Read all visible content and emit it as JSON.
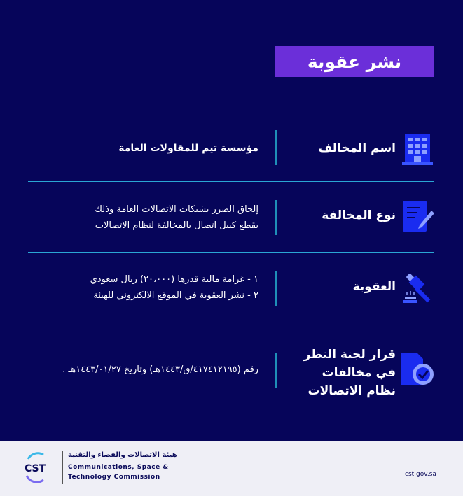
{
  "title": "نشر عقوبة",
  "rows": [
    {
      "label": "اسم المخالف",
      "value": "مؤسسة تيم للمقاولات العامة",
      "icon": "building-icon"
    },
    {
      "label": "نوع المخالفة",
      "value_lines": [
        "إلحاق الضرر بشبكات الاتصالات العامة وذلك",
        "بقطع كيبل اتصال بالمخالفة لنظام الاتصالات"
      ],
      "icon": "document-pen-icon"
    },
    {
      "label": "العقوبة",
      "value_lines": [
        "١ -  غرامة مالية قدرها (٢٠،٠٠٠) ريال سعودي",
        "٢ - نشر العقوبة في الموقع الالكتروني للهيئة"
      ],
      "icon": "gavel-icon"
    },
    {
      "label_lines": [
        "قرار لجنة النظر",
        "في مخالفات",
        "نظام الاتصالات"
      ],
      "value": "رقم (٤١٧٤١٢١٩٥/ق/١٤٤٣هـ) وتاريخ ١٤٤٣/٠١/٢٧هـ .",
      "icon": "document-badge-check-icon"
    }
  ],
  "footer": {
    "logo_text": "CST",
    "org_arabic": "هيئة الاتصالات والفضاء والتقنية",
    "org_english_1": "Communications, Space &",
    "org_english_2": "Technology Commission",
    "website": "cst.gov.sa"
  },
  "colors": {
    "background": "#06055a",
    "title_bg": "#6b2fd9",
    "separator": "#2aa6d4",
    "icon_blue": "#1a2cf0"
  }
}
